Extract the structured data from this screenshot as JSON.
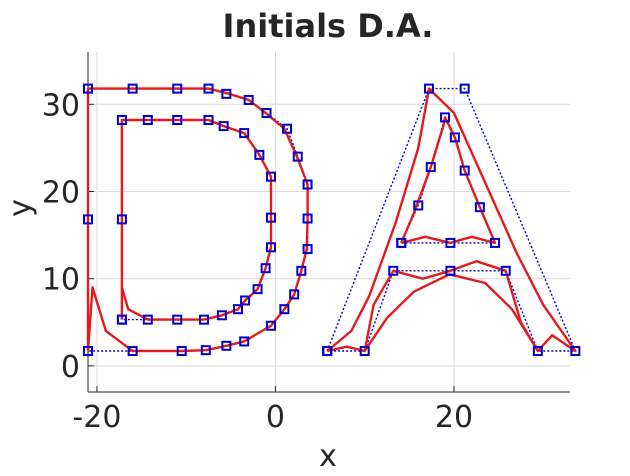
{
  "chart_data": {
    "type": "line",
    "title": "Initials D.A.",
    "xlabel": "x",
    "ylabel": "y",
    "xlim": [
      -21,
      33
    ],
    "ylim": [
      -3,
      36
    ],
    "x_ticks": [
      -20,
      0,
      20
    ],
    "y_ticks": [
      0,
      10,
      20,
      30
    ],
    "grid": true,
    "colors": {
      "curve": "#e41a1c",
      "control": "#0000cc",
      "grid": "#d9d9d9",
      "axis": "#262626"
    },
    "series": [
      {
        "role": "control-polygon",
        "points": [
          [
            -21,
            1.7
          ],
          [
            -21,
            16.8
          ],
          [
            -21,
            31.8
          ],
          [
            -16,
            31.8
          ],
          [
            -11,
            31.8
          ],
          [
            -7.5,
            31.8
          ],
          [
            -5.5,
            31.2
          ],
          [
            -3,
            30.5
          ],
          [
            -1,
            29
          ],
          [
            1.3,
            27.2
          ],
          [
            2.5,
            24
          ],
          [
            3.6,
            20.8
          ],
          [
            3.6,
            16.9
          ],
          [
            3.6,
            13.4
          ],
          [
            2.9,
            10.9
          ],
          [
            2.1,
            8.2
          ],
          [
            1,
            6.5
          ],
          [
            -0.5,
            4.6
          ],
          [
            -3.5,
            2.8
          ],
          [
            -5.5,
            2.3
          ],
          [
            -7.8,
            1.8
          ],
          [
            -10.5,
            1.7
          ],
          [
            -16,
            1.7
          ],
          [
            -21,
            1.7
          ]
        ]
      },
      {
        "role": "control-polygon",
        "points": [
          [
            -17.2,
            5.3
          ],
          [
            -17.2,
            16.8
          ],
          [
            -17.2,
            28.2
          ],
          [
            -14.3,
            28.2
          ],
          [
            -11,
            28.2
          ],
          [
            -7.5,
            28.2
          ],
          [
            -5.8,
            27.5
          ],
          [
            -3.5,
            26.7
          ],
          [
            -1.8,
            24.2
          ],
          [
            -0.5,
            21.7
          ],
          [
            -0.5,
            17
          ],
          [
            -0.5,
            13.6
          ],
          [
            -1.1,
            11.2
          ],
          [
            -2,
            8.8
          ],
          [
            -3.4,
            7.5
          ],
          [
            -4.2,
            6.5
          ],
          [
            -6,
            5.8
          ],
          [
            -8,
            5.3
          ],
          [
            -11,
            5.3
          ],
          [
            -14.3,
            5.3
          ],
          [
            -17.2,
            5.3
          ]
        ]
      },
      {
        "role": "control-polygon",
        "points": [
          [
            5.8,
            1.7
          ],
          [
            17.2,
            31.8
          ],
          [
            21.2,
            31.8
          ],
          [
            33.6,
            1.7
          ],
          [
            29.4,
            1.7
          ],
          [
            25.8,
            10.9
          ],
          [
            19.6,
            10.9
          ],
          [
            13.2,
            10.9
          ],
          [
            10,
            1.7
          ],
          [
            5.8,
            1.7
          ]
        ]
      },
      {
        "role": "control-polygon",
        "points": [
          [
            14.1,
            14.1
          ],
          [
            16,
            18.4
          ],
          [
            17.4,
            22.8
          ],
          [
            19,
            28.5
          ],
          [
            20.1,
            26.2
          ],
          [
            21.2,
            22.4
          ],
          [
            22.9,
            18.2
          ],
          [
            24.6,
            14.1
          ],
          [
            19.6,
            14.1
          ],
          [
            14.1,
            14.1
          ]
        ]
      },
      {
        "role": "curve",
        "points": [
          [
            -21,
            1.7
          ],
          [
            -21,
            16.8
          ],
          [
            -21,
            31.8
          ],
          [
            -16,
            31.8
          ],
          [
            -11,
            31.8
          ],
          [
            -7.5,
            31.8
          ],
          [
            -5.5,
            31.3
          ],
          [
            -3,
            30.5
          ],
          [
            -1.1,
            29
          ],
          [
            1,
            27.2
          ],
          [
            2.4,
            24
          ],
          [
            3.6,
            20.8
          ],
          [
            3.6,
            16.9
          ],
          [
            3.5,
            13.4
          ],
          [
            2.9,
            10.9
          ],
          [
            2.1,
            8.2
          ],
          [
            1,
            6.5
          ],
          [
            -0.5,
            4.6
          ],
          [
            -3.5,
            2.8
          ],
          [
            -5.5,
            2.3
          ],
          [
            -7.8,
            1.8
          ],
          [
            -10.5,
            1.7
          ],
          [
            -16,
            1.7
          ],
          [
            -19,
            4
          ],
          [
            -20.5,
            9
          ],
          [
            -21,
            1.7
          ]
        ]
      },
      {
        "role": "curve",
        "points": [
          [
            -17.2,
            5.3
          ],
          [
            -17.2,
            16.8
          ],
          [
            -17.2,
            28.2
          ],
          [
            -14.3,
            28.2
          ],
          [
            -11,
            28.2
          ],
          [
            -7.5,
            28.2
          ],
          [
            -5.8,
            27.5
          ],
          [
            -3.5,
            26.7
          ],
          [
            -1.8,
            24.2
          ],
          [
            -0.5,
            21.7
          ],
          [
            -0.5,
            17
          ],
          [
            -0.5,
            13.6
          ],
          [
            -1.1,
            11.2
          ],
          [
            -2,
            8.8
          ],
          [
            -3.4,
            7.5
          ],
          [
            -4.2,
            6.5
          ],
          [
            -6,
            5.8
          ],
          [
            -8,
            5.3
          ],
          [
            -11,
            5.3
          ],
          [
            -14.3,
            5.3
          ],
          [
            -16.5,
            6.5
          ],
          [
            -17.2,
            9
          ],
          [
            -17.2,
            5.3
          ]
        ]
      },
      {
        "role": "curve",
        "points": [
          [
            5.8,
            1.7
          ],
          [
            8.5,
            4
          ],
          [
            10.5,
            8
          ],
          [
            13.5,
            16.5
          ],
          [
            16,
            25
          ],
          [
            17.2,
            31.8
          ],
          [
            20,
            29
          ],
          [
            23.5,
            21
          ],
          [
            27,
            13
          ],
          [
            30,
            7
          ],
          [
            33.6,
            1.7
          ],
          [
            31,
            3.5
          ],
          [
            29.4,
            1.7
          ],
          [
            27.5,
            5
          ],
          [
            25.8,
            10.9
          ],
          [
            22.5,
            12
          ],
          [
            19.6,
            10.9
          ],
          [
            16.5,
            10
          ],
          [
            13.2,
            10.9
          ],
          [
            11,
            7
          ],
          [
            10,
            1.7
          ],
          [
            8,
            2.2
          ],
          [
            5.8,
            1.7
          ]
        ]
      },
      {
        "role": "curve",
        "points": [
          [
            14.1,
            14.1
          ],
          [
            15.5,
            17.5
          ],
          [
            17.4,
            22.8
          ],
          [
            18.8,
            27.5
          ],
          [
            19,
            28.5
          ],
          [
            20.1,
            26.2
          ],
          [
            21.2,
            22.4
          ],
          [
            22.9,
            18.2
          ],
          [
            24.6,
            14.1
          ],
          [
            22,
            14.8
          ],
          [
            19.6,
            14.1
          ],
          [
            16.8,
            14.8
          ],
          [
            14.1,
            14.1
          ]
        ]
      },
      {
        "role": "curve",
        "points": [
          [
            10,
            1.7
          ],
          [
            12.5,
            5.5
          ],
          [
            15.5,
            8.5
          ],
          [
            19.5,
            10.5
          ],
          [
            23.5,
            9.5
          ],
          [
            26.5,
            6.5
          ],
          [
            29.4,
            1.7
          ]
        ]
      }
    ]
  }
}
